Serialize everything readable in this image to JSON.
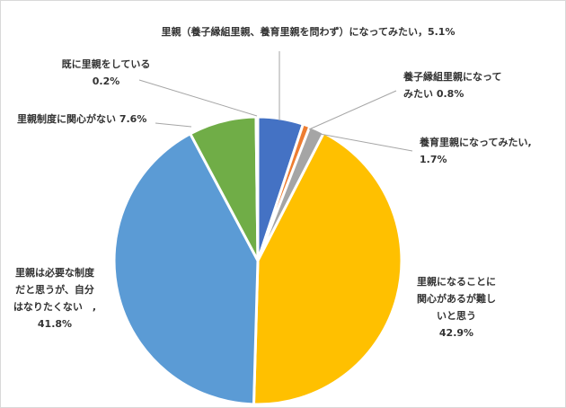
{
  "chart_data": {
    "type": "pie",
    "slices": [
      {
        "label": "里親（養子縁組里親、養育里親を問わず）になってみたい",
        "value": 5.1,
        "color": "#4472C4",
        "text_lines": [
          "里親（養子縁組里親、養育里親を問わず）になってみたい，5.1%"
        ]
      },
      {
        "label": "養子縁組里親になってみたい",
        "value": 0.8,
        "color": "#ED7D31",
        "text_lines": [
          "養子縁組里親になって",
          "みたい 0.8%"
        ]
      },
      {
        "label": "養育里親になってみたい",
        "value": 1.7,
        "color": "#A5A5A5",
        "text_lines": [
          "養育里親になってみたい,",
          "1.7%"
        ]
      },
      {
        "label": "里親になることに関心があるが難しいと思う",
        "value": 42.9,
        "color": "#FFC000",
        "text_lines": [
          "里親になることに",
          "関心があるが難し",
          "いと思う",
          "42.9%"
        ]
      },
      {
        "label": "里親は必要な制度だと思うが、自分はなりたくない",
        "value": 41.8,
        "color": "#5B9BD5",
        "text_lines": [
          "里親は必要な制度",
          "だと思うが、自分",
          "はなりたくない　,",
          "41.8%"
        ]
      },
      {
        "label": "里親制度に関心がない",
        "value": 7.6,
        "color": "#70AD47",
        "text_lines": [
          "里親制度に関心がない 7.6%"
        ]
      },
      {
        "label": "既に里親をしている",
        "value": 0.2,
        "color": "#264478",
        "text_lines": [
          "既に里親をしている",
          "0.2%"
        ]
      }
    ]
  }
}
